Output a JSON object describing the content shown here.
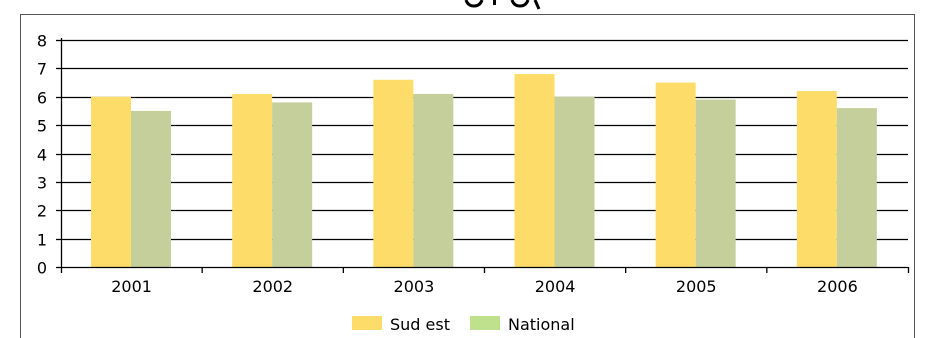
{
  "chart_data": {
    "type": "bar",
    "title": "",
    "xlabel": "",
    "ylabel": "",
    "categories": [
      "2001",
      "2002",
      "2003",
      "2004",
      "2005",
      "2006"
    ],
    "series": [
      {
        "name": "Sud est",
        "values": [
          6.0,
          6.1,
          6.6,
          6.8,
          6.5,
          6.2
        ],
        "color": "#fddc6a"
      },
      {
        "name": "National",
        "values": [
          5.5,
          5.8,
          6.1,
          6.0,
          5.9,
          5.6
        ],
        "color": "#c4cf9b"
      }
    ],
    "ylim": [
      0,
      8
    ],
    "yticks": [
      "0",
      "1",
      "2",
      "3",
      "4",
      "5",
      "6",
      "7",
      "8"
    ],
    "grid": true,
    "legend": "bottom-center",
    "legend_swatch_colors": [
      "#fddc6a",
      "#bfe08c"
    ],
    "frame_color": "#444444",
    "grid_color": "#000000"
  }
}
